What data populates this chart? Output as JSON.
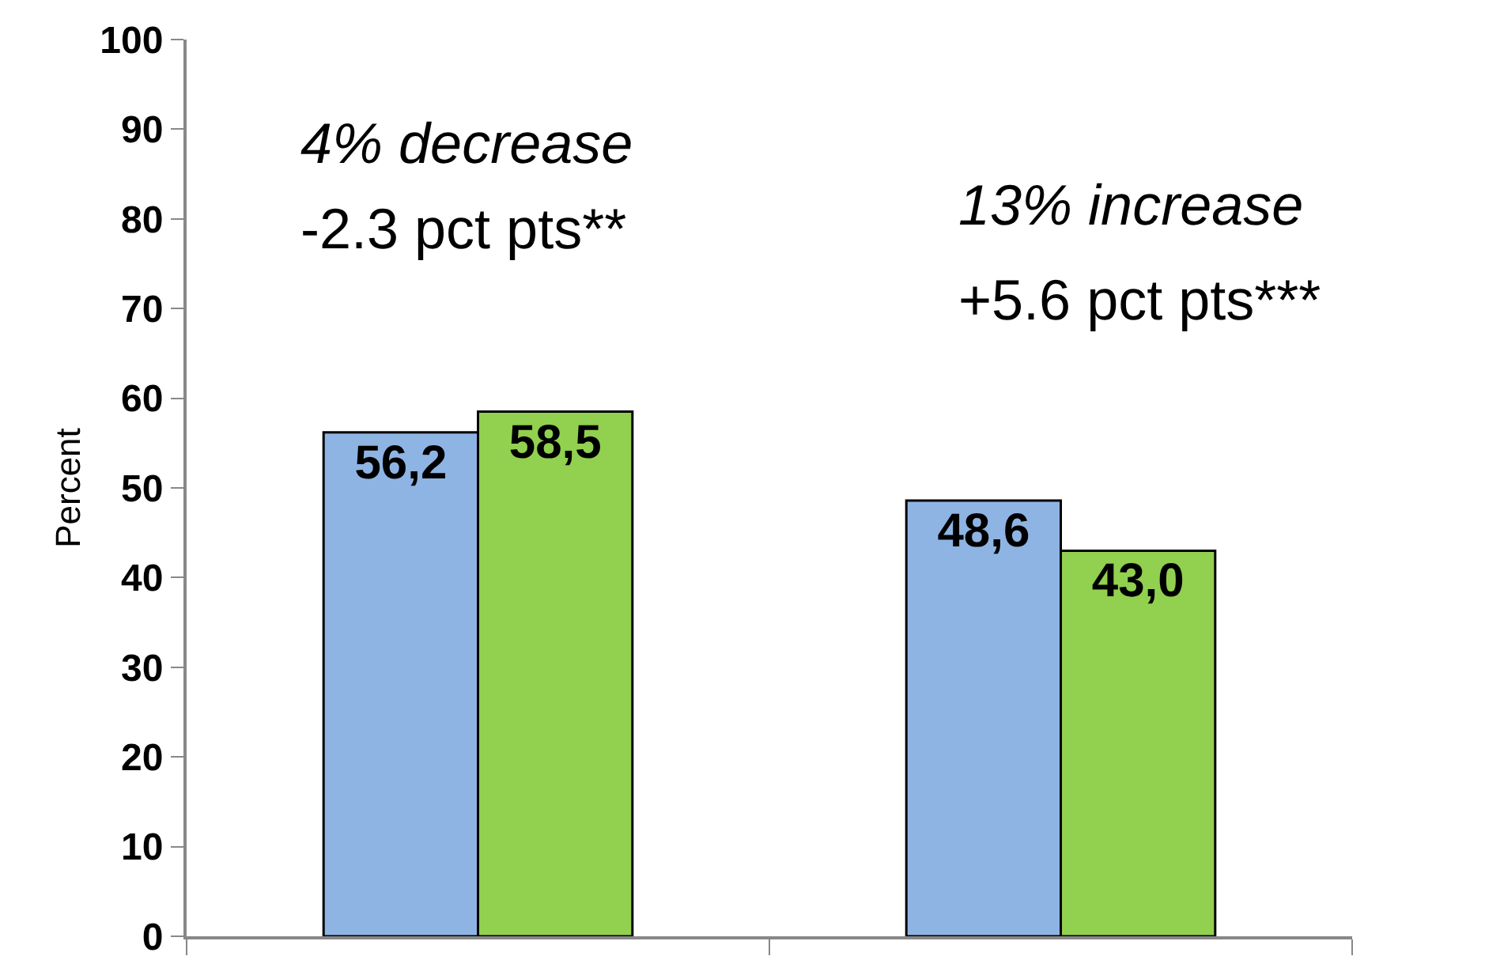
{
  "chart_data": {
    "type": "bar",
    "ylabel": "Percent",
    "categories": [
      null,
      null
    ],
    "series": [
      {
        "color": "#8eb4e3",
        "values": [
          56.2,
          48.6
        ],
        "value_labels": [
          "56,2",
          "48,6"
        ]
      },
      {
        "color": "#92d050",
        "values": [
          58.5,
          43.0
        ],
        "value_labels": [
          "58,5",
          "43,0"
        ]
      }
    ],
    "ylim": [
      0,
      100
    ],
    "yticks": [
      0,
      10,
      20,
      30,
      40,
      50,
      60,
      70,
      80,
      90,
      100
    ],
    "grid": false,
    "annotations": [
      "4% decrease",
      "-2.3 pct pts**",
      "13% increase",
      "+5.6 pct pts***"
    ]
  }
}
